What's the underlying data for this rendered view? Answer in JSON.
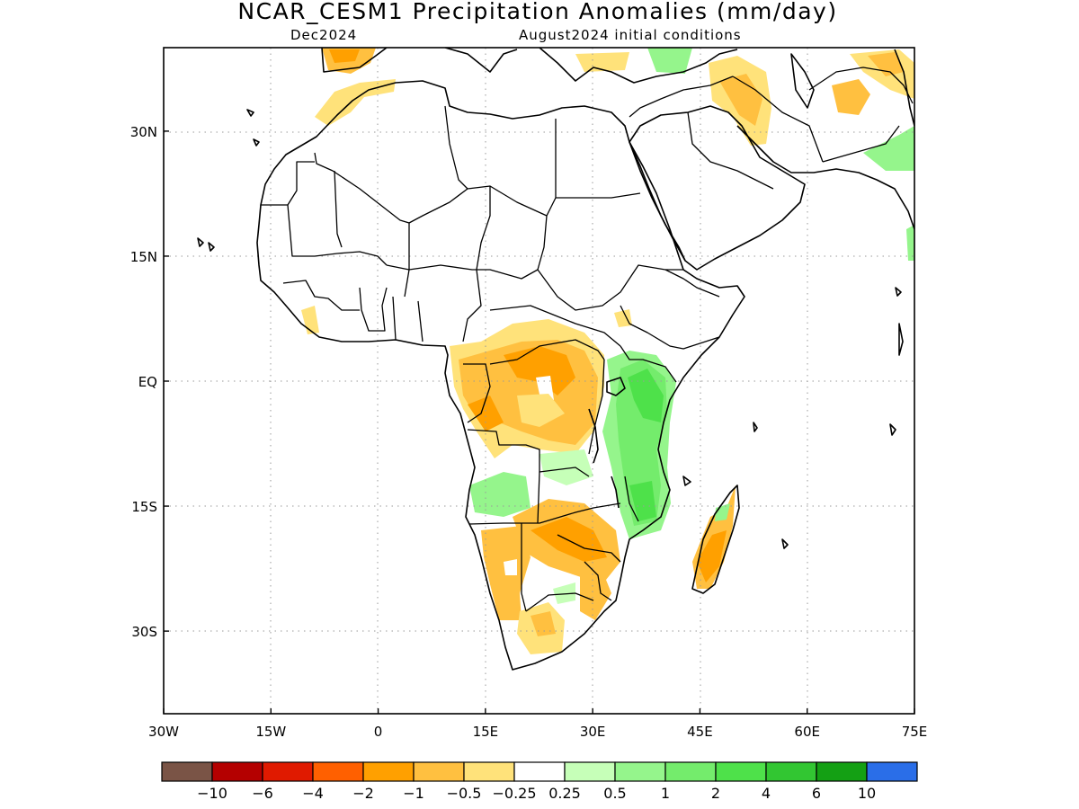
{
  "title": "NCAR_CESM1 Precipitation Anomalies (mm/day)",
  "subtitle_left": "Dec2024",
  "subtitle_right": "August2024 initial conditions",
  "map": {
    "lon_range": [
      -30,
      75
    ],
    "lat_range": [
      -40,
      41
    ],
    "grid": true,
    "lon_ticks": [
      {
        "v": -30,
        "label": "30W"
      },
      {
        "v": -15,
        "label": "15W"
      },
      {
        "v": 0,
        "label": "0"
      },
      {
        "v": 15,
        "label": "15E"
      },
      {
        "v": 30,
        "label": "30E"
      },
      {
        "v": 45,
        "label": "45E"
      },
      {
        "v": 60,
        "label": "60E"
      },
      {
        "v": 75,
        "label": "75E"
      }
    ],
    "lat_ticks": [
      {
        "v": 30,
        "label": "30N"
      },
      {
        "v": 15,
        "label": "15N"
      },
      {
        "v": 0,
        "label": "EQ"
      },
      {
        "v": -15,
        "label": "15S"
      },
      {
        "v": -30,
        "label": "30S"
      }
    ]
  },
  "colorbar": {
    "colors": [
      "#7a5446",
      "#b40000",
      "#e01a00",
      "#ff6000",
      "#ffa000",
      "#ffc040",
      "#ffe27a",
      "#ffffff",
      "#c6ffb8",
      "#95f58c",
      "#74ec6c",
      "#4ee14a",
      "#32c632",
      "#14a014",
      "#2a6ee8"
    ],
    "labels": [
      "−10",
      "−6",
      "−4",
      "−2",
      "−1",
      "−0.5",
      "−0.25",
      "0.25",
      "0.5",
      "1",
      "2",
      "4",
      "6",
      "10"
    ]
  },
  "anomaly_regions": [
    {
      "name": "Central Africa / Congo basin",
      "category": "-0.5 to -1",
      "color": "#ffc040"
    },
    {
      "name": "Central Africa core",
      "category": "-1 to -2",
      "color": "#ffa000"
    },
    {
      "name": "Southern Africa (Zambia/Zimbabwe)",
      "category": "-1 to -2",
      "color": "#ffa000"
    },
    {
      "name": "Southwest Africa",
      "category": "-0.5 to -1",
      "color": "#ffc040"
    },
    {
      "name": "Madagascar",
      "category": "-0.5 to -1",
      "color": "#ffc040"
    },
    {
      "name": "East Africa (Kenya/Tanzania)",
      "category": "1 to 2",
      "color": "#74ec6c"
    },
    {
      "name": "Mozambique",
      "category": "1 to 2",
      "color": "#74ec6c"
    },
    {
      "name": "Angola interior",
      "category": "0.5 to 1",
      "color": "#95f58c"
    },
    {
      "name": "Northwest Morocco",
      "category": "-0.25 to -1",
      "color": "#ffc040"
    },
    {
      "name": "Iran / Iraq",
      "category": "-0.25 to -1",
      "color": "#ffc040"
    },
    {
      "name": "India west coast",
      "category": "0.5 to 1",
      "color": "#95f58c"
    }
  ]
}
